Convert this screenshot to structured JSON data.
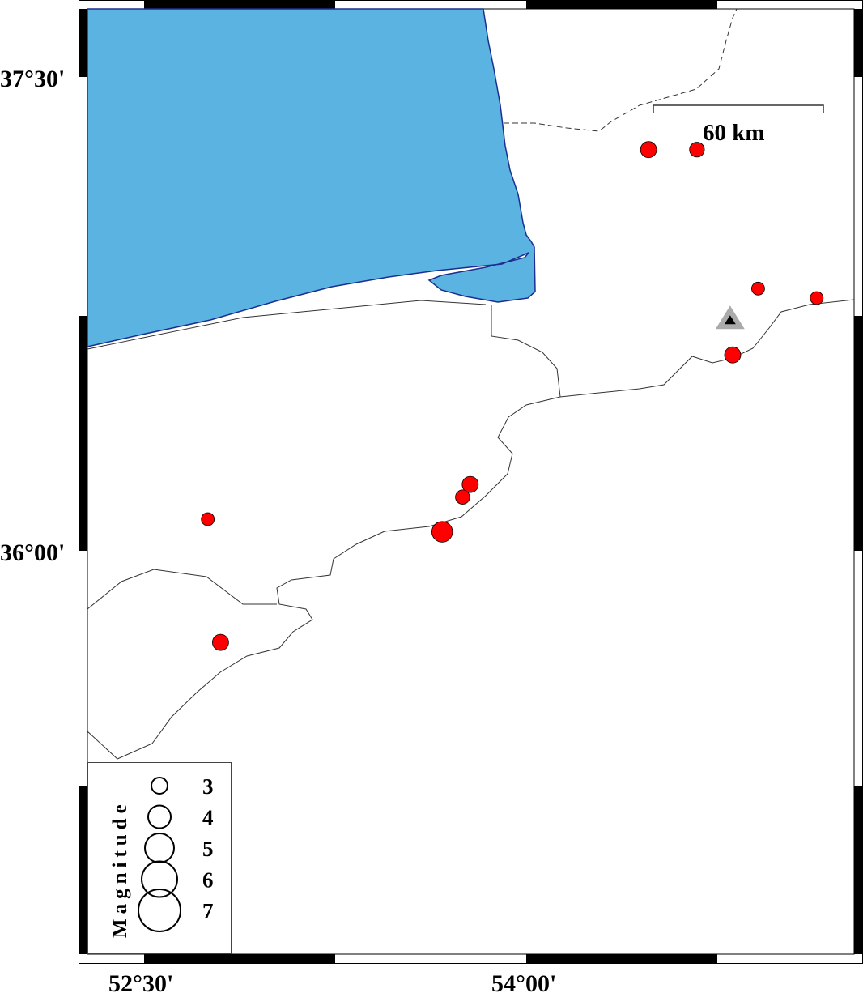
{
  "map": {
    "sea_color": "#5ab3e0",
    "coast_color": "#1a2f8f",
    "event_color": "#ff0000",
    "station_outer_color": "#aaaaaa",
    "station_inner_color": "#000000",
    "lat_labels": [
      {
        "value": 37.5,
        "text": "37°30'"
      },
      {
        "value": 36.0,
        "text": "36°00'"
      }
    ],
    "lon_labels": [
      {
        "value": 52.5,
        "text": "52°30'"
      },
      {
        "value": 54.0,
        "text": "54°00'"
      }
    ],
    "scale_bar": {
      "label": "60 km"
    },
    "station": {
      "lon": 54.8,
      "lat": 36.73,
      "icon": "triangle-station-icon"
    }
  },
  "chart_data": {
    "type": "scatter",
    "x_label": "",
    "y_label": "",
    "lon_range": [
      52.28,
      55.29
    ],
    "lat_range": [
      35.22,
      37.74
    ],
    "events": [
      {
        "lon": 54.48,
        "lat": 37.27,
        "mag": 3.0
      },
      {
        "lon": 54.67,
        "lat": 37.27,
        "mag": 2.8
      },
      {
        "lon": 54.91,
        "lat": 36.83,
        "mag": 2.5
      },
      {
        "lon": 55.14,
        "lat": 36.8,
        "mag": 2.5
      },
      {
        "lon": 54.81,
        "lat": 36.62,
        "mag": 3.0
      },
      {
        "lon": 53.78,
        "lat": 36.21,
        "mag": 3.0
      },
      {
        "lon": 53.75,
        "lat": 36.17,
        "mag": 2.7
      },
      {
        "lon": 53.67,
        "lat": 36.06,
        "mag": 3.7
      },
      {
        "lon": 52.75,
        "lat": 36.1,
        "mag": 2.5
      },
      {
        "lon": 52.8,
        "lat": 35.71,
        "mag": 3.0
      }
    ]
  },
  "legend": {
    "title": "Magnitude",
    "items": [
      {
        "mag": 3,
        "label": "3"
      },
      {
        "mag": 4,
        "label": "4"
      },
      {
        "mag": 5,
        "label": "5"
      },
      {
        "mag": 6,
        "label": "6"
      },
      {
        "mag": 7,
        "label": "7"
      }
    ]
  }
}
